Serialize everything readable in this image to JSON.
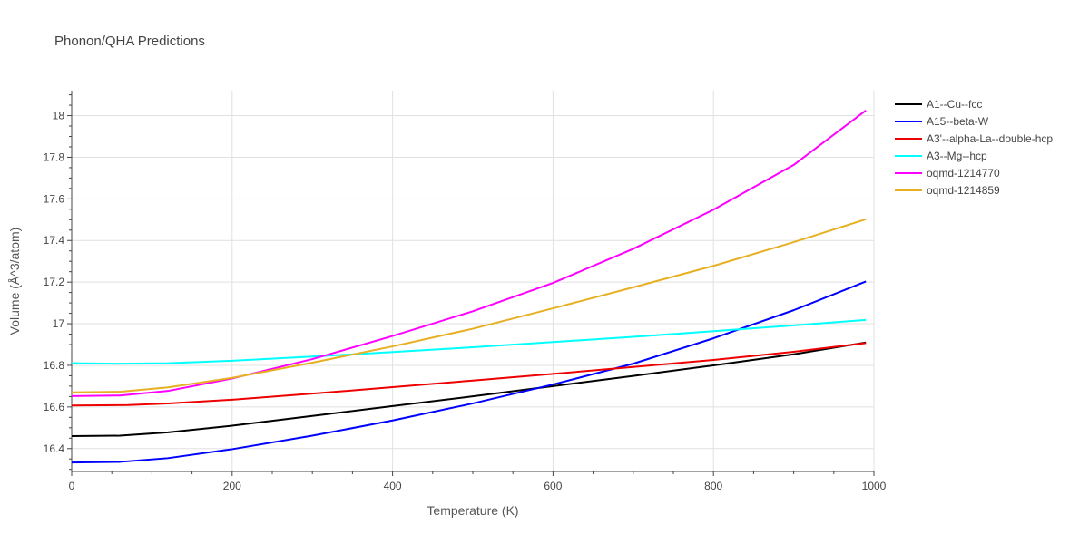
{
  "chart_data": {
    "type": "line",
    "title": "Phonon/QHA Predictions",
    "xlabel": "Temperature (K)",
    "ylabel": "Volume (Å^3/atom)",
    "xlim": [
      0,
      1000
    ],
    "ylim": [
      16.29,
      18.12
    ],
    "xticks": [
      0,
      200,
      400,
      600,
      800,
      1000
    ],
    "yticks": [
      16.4,
      16.6,
      16.8,
      17,
      17.2,
      17.4,
      17.6,
      17.8,
      18
    ],
    "ytick_labels": [
      "16.4",
      "16.6",
      "16.8",
      "17",
      "17.2",
      "17.4",
      "17.6",
      "17.8",
      "18"
    ],
    "grid": true,
    "legend_position": "top-right",
    "series": [
      {
        "name": "A1--Cu--fcc",
        "color": "#000000",
        "x": [
          0,
          60,
          120,
          200,
          300,
          400,
          500,
          600,
          700,
          800,
          900,
          990
        ],
        "y": [
          16.46,
          16.462,
          16.478,
          16.51,
          16.557,
          16.604,
          16.651,
          16.7,
          16.749,
          16.8,
          16.853,
          16.91
        ]
      },
      {
        "name": "A15--beta-W",
        "color": "#0000ff",
        "x": [
          0,
          60,
          120,
          200,
          300,
          400,
          500,
          600,
          700,
          800,
          900,
          990
        ],
        "y": [
          16.333,
          16.336,
          16.354,
          16.397,
          16.462,
          16.535,
          16.617,
          16.708,
          16.808,
          16.93,
          17.065,
          17.203
        ]
      },
      {
        "name": "A3'--alpha-La--double-hcp",
        "color": "#ee0000",
        "x": [
          0,
          70,
          120,
          200,
          300,
          400,
          500,
          600,
          700,
          800,
          900,
          990
        ],
        "y": [
          16.607,
          16.609,
          16.617,
          16.635,
          16.664,
          16.695,
          16.727,
          16.759,
          16.792,
          16.826,
          16.865,
          16.907
        ]
      },
      {
        "name": "A3--Mg--hcp",
        "color": "#00ffff",
        "x": [
          0,
          60,
          120,
          200,
          300,
          400,
          500,
          600,
          700,
          800,
          900,
          990
        ],
        "y": [
          16.81,
          16.808,
          16.81,
          16.822,
          16.842,
          16.864,
          16.887,
          16.912,
          16.937,
          16.964,
          16.992,
          17.018
        ]
      },
      {
        "name": "oqmd-1214770",
        "color": "#ff00ff",
        "x": [
          0,
          60,
          120,
          200,
          300,
          400,
          500,
          600,
          700,
          800,
          900,
          990
        ],
        "y": [
          16.652,
          16.655,
          16.677,
          16.737,
          16.83,
          16.941,
          17.06,
          17.196,
          17.36,
          17.548,
          17.763,
          18.025
        ]
      },
      {
        "name": "oqmd-1214859",
        "color": "#e6b022",
        "x": [
          0,
          60,
          120,
          200,
          300,
          400,
          500,
          600,
          700,
          800,
          900,
          990
        ],
        "y": [
          16.67,
          16.673,
          16.694,
          16.74,
          16.813,
          16.891,
          16.976,
          17.074,
          17.175,
          17.278,
          17.392,
          17.502
        ]
      }
    ]
  }
}
